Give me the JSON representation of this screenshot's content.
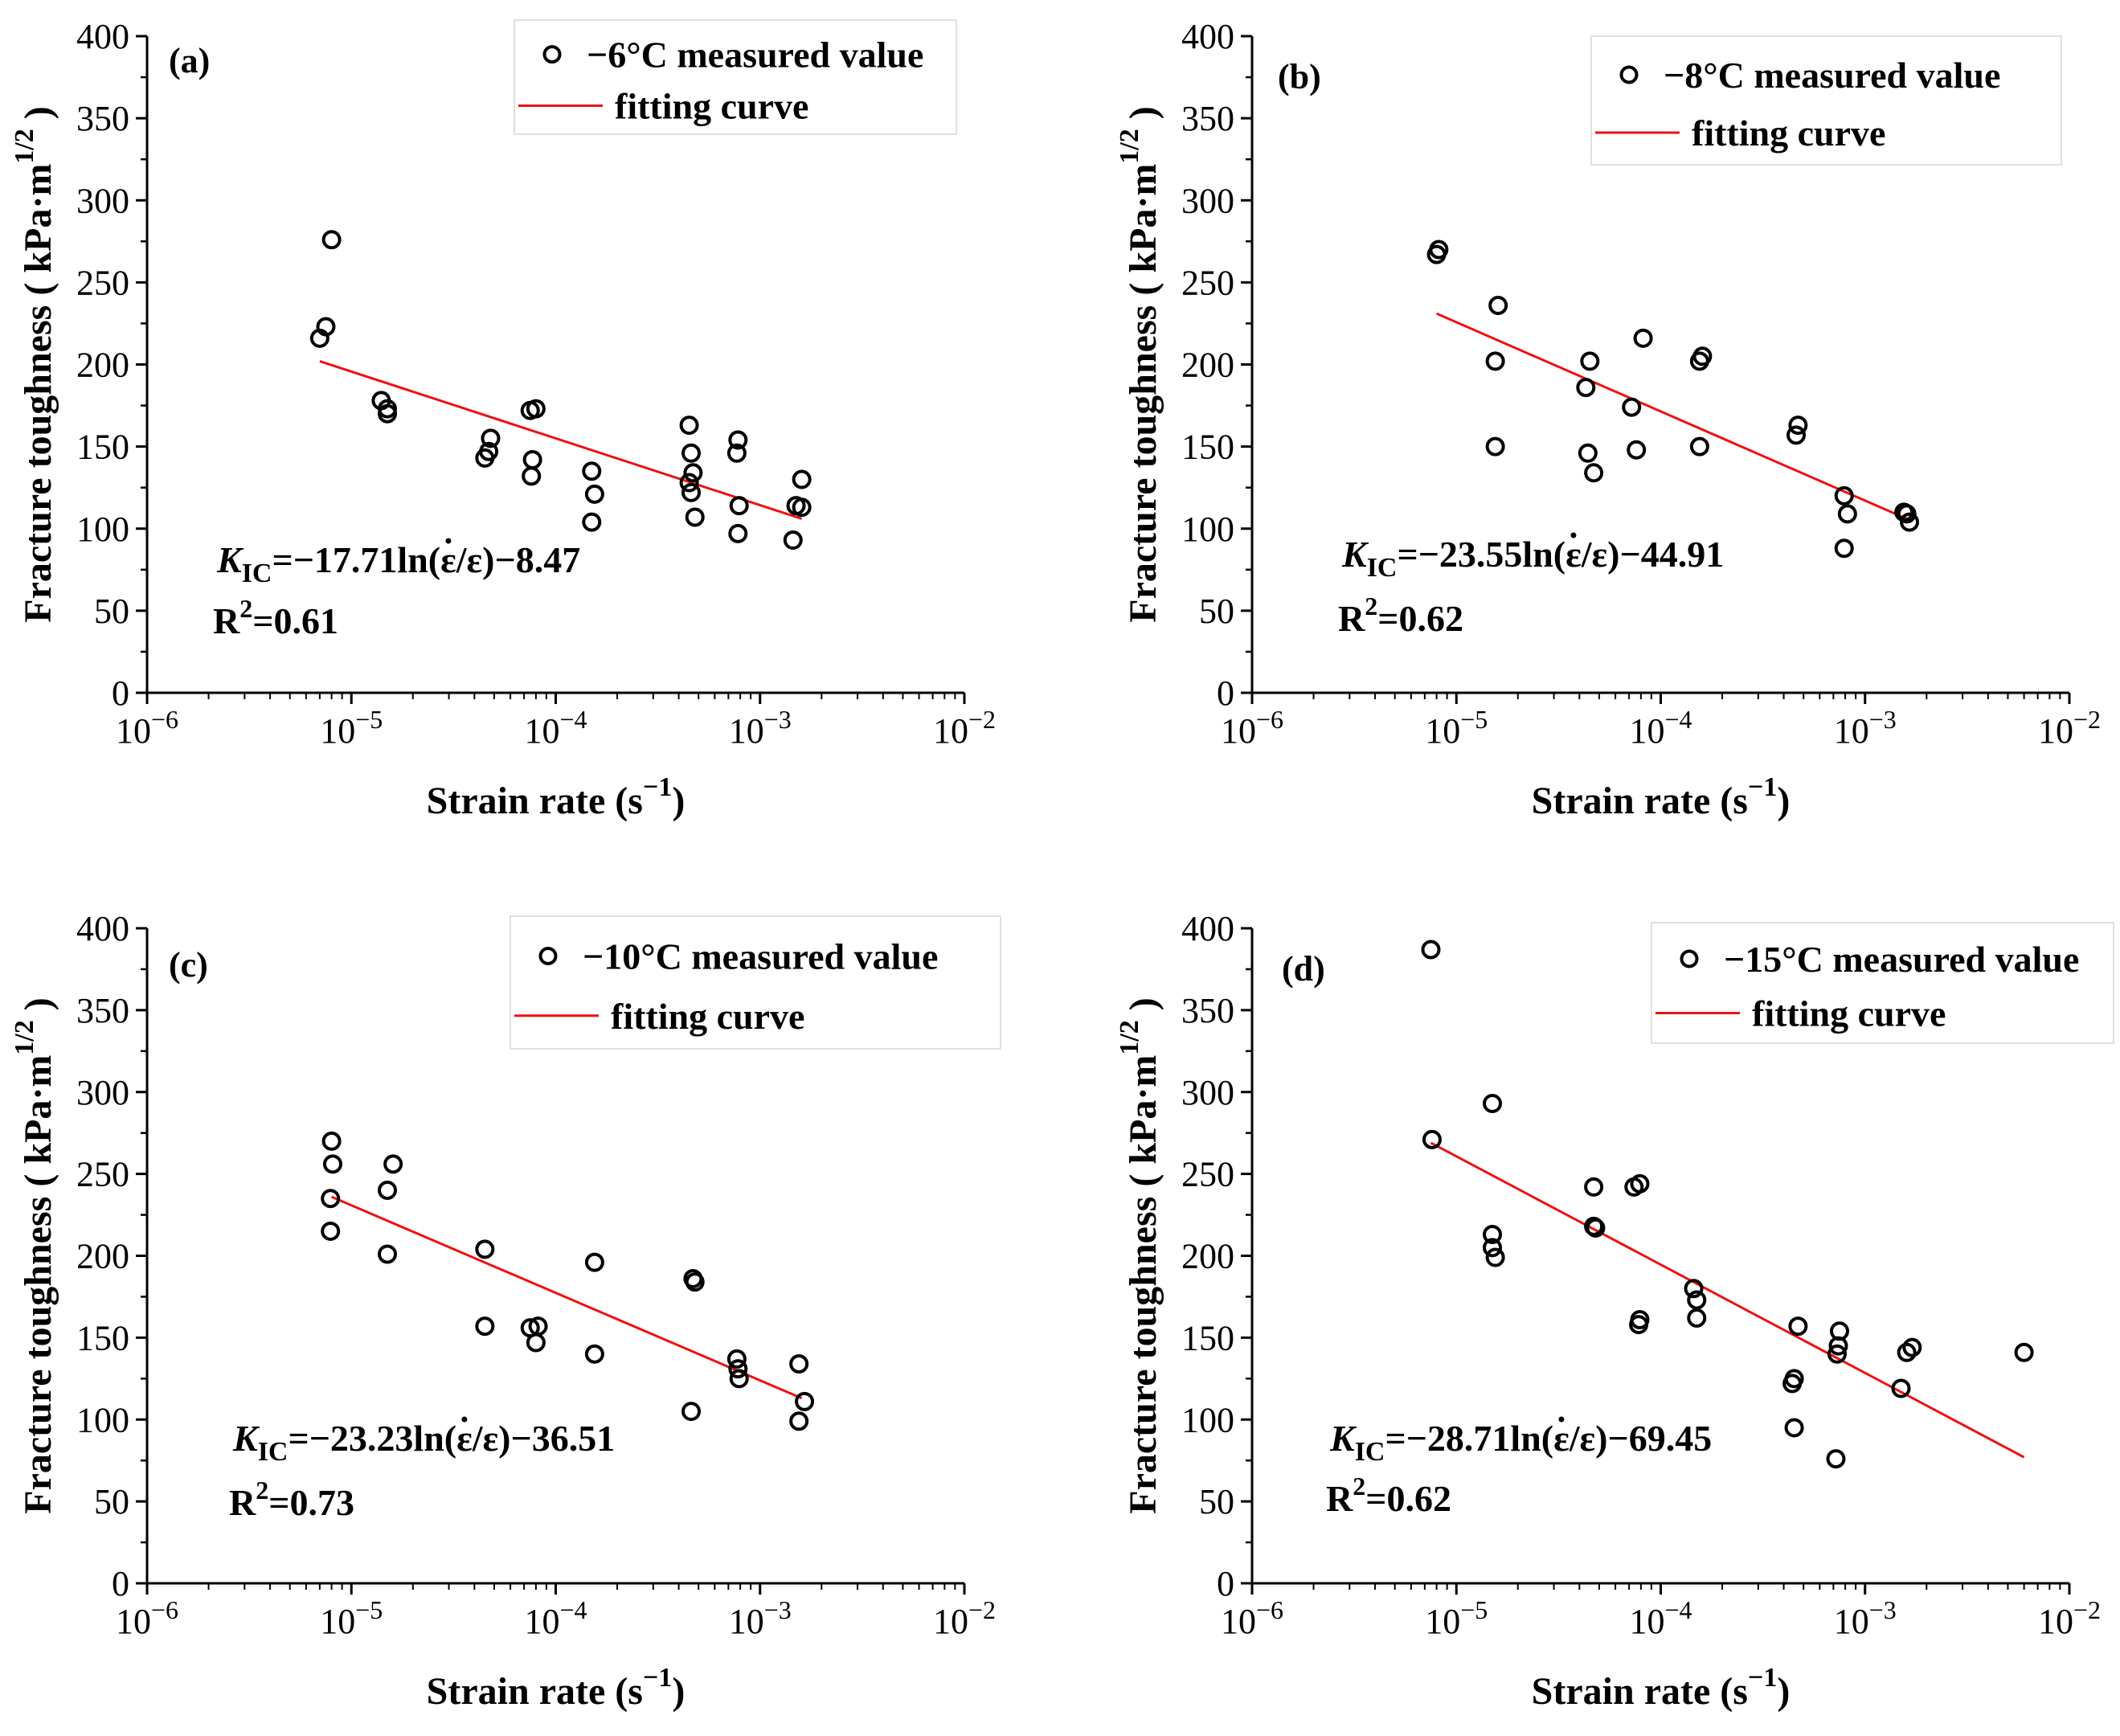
{
  "colors": {
    "fit_line": "#ee1111",
    "marker": "#000000"
  },
  "chart_data": [
    {
      "type": "scatter",
      "panel_label": "(a)",
      "xlabel": "Strain rate (s−1)",
      "ylabel": "Fracture toughness ( kPa·m1/2 )",
      "xscale": "log",
      "xlim": [
        1e-06,
        0.01
      ],
      "ylim": [
        0,
        400
      ],
      "xticks": [
        "10−6",
        "10−5",
        "10−4",
        "10−3",
        "10−2"
      ],
      "yticks": [
        0,
        50,
        100,
        150,
        200,
        250,
        300,
        350,
        400
      ],
      "legend_position": "top-right",
      "series": [
        {
          "name": "−6°C measured value",
          "kind": "markers",
          "points": [
            [
              7e-06,
              216
            ],
            [
              7.5e-06,
              223
            ],
            [
              8e-06,
              276
            ],
            [
              1.4e-05,
              178
            ],
            [
              1.5e-05,
              173
            ],
            [
              1.5e-05,
              170
            ],
            [
              4.5e-05,
              143
            ],
            [
              4.7e-05,
              147
            ],
            [
              4.8e-05,
              155
            ],
            [
              7.5e-05,
              172
            ],
            [
              8e-05,
              173
            ],
            [
              7.7e-05,
              142
            ],
            [
              7.6e-05,
              132
            ],
            [
              0.00015,
              135
            ],
            [
              0.000155,
              121
            ],
            [
              0.00015,
              104
            ],
            [
              0.00045,
              163
            ],
            [
              0.00046,
              146
            ],
            [
              0.00047,
              134
            ],
            [
              0.00045,
              128
            ],
            [
              0.00046,
              122
            ],
            [
              0.00048,
              107
            ],
            [
              0.00078,
              154
            ],
            [
              0.00077,
              146
            ],
            [
              0.00079,
              114
            ],
            [
              0.00078,
              97
            ],
            [
              0.00145,
              93
            ],
            [
              0.0015,
              114
            ],
            [
              0.0016,
              113
            ],
            [
              0.0016,
              130
            ]
          ]
        },
        {
          "name": "fitting curve",
          "kind": "line",
          "points": [
            [
              7e-06,
              202
            ],
            [
              0.0016,
              106
            ]
          ]
        }
      ],
      "annotation": {
        "coef": "=−17.71ln(",
        "eps": "ε/ε)−8.47",
        "r2": "=0.61"
      }
    },
    {
      "type": "scatter",
      "panel_label": "(b)",
      "xlabel": "Strain rate (s−1)",
      "ylabel": "Fracture toughness ( kPa·m1/2 )",
      "xscale": "log",
      "xlim": [
        1e-06,
        0.01
      ],
      "ylim": [
        0,
        400
      ],
      "xticks": [
        "10−6",
        "10−5",
        "10−4",
        "10−3",
        "10−2"
      ],
      "yticks": [
        0,
        50,
        100,
        150,
        200,
        250,
        300,
        350,
        400
      ],
      "legend_position": "top-right",
      "series": [
        {
          "name": "−8°C measured value",
          "kind": "markers",
          "points": [
            [
              8e-06,
              267
            ],
            [
              8.2e-06,
              270
            ],
            [
              1.6e-05,
              236
            ],
            [
              1.55e-05,
              202
            ],
            [
              1.55e-05,
              150
            ],
            [
              4.3e-05,
              186
            ],
            [
              4.5e-05,
              202
            ],
            [
              4.4e-05,
              146
            ],
            [
              4.7e-05,
              134
            ],
            [
              7.2e-05,
              174
            ],
            [
              7.6e-05,
              148
            ],
            [
              8.2e-05,
              216
            ],
            [
              0.000155,
              202
            ],
            [
              0.00016,
              205
            ],
            [
              0.000155,
              150
            ],
            [
              0.00047,
              163
            ],
            [
              0.00046,
              157
            ],
            [
              0.00079,
              120
            ],
            [
              0.00082,
              109
            ],
            [
              0.00079,
              88
            ],
            [
              0.00155,
              110
            ],
            [
              0.0016,
              109
            ],
            [
              0.00165,
              104
            ]
          ]
        },
        {
          "name": "fitting curve",
          "kind": "line",
          "points": [
            [
              8e-06,
              231
            ],
            [
              0.0016,
              106
            ]
          ]
        }
      ],
      "annotation": {
        "coef": "=−23.55ln(",
        "eps": "ε/ε)−44.91",
        "r2": "=0.62"
      }
    },
    {
      "type": "scatter",
      "panel_label": "(c)",
      "xlabel": "Strain rate (s−1)",
      "ylabel": "Fracture toughness ( kPa·m1/2 )",
      "xscale": "log",
      "xlim": [
        1e-06,
        0.01
      ],
      "ylim": [
        0,
        400
      ],
      "xticks": [
        "10−6",
        "10−5",
        "10−4",
        "10−3",
        "10−2"
      ],
      "yticks": [
        0,
        50,
        100,
        150,
        200,
        250,
        300,
        350,
        400
      ],
      "legend_position": "top-right",
      "series": [
        {
          "name": "−10°C measured value",
          "kind": "markers",
          "points": [
            [
              8e-06,
              270
            ],
            [
              8.1e-06,
              256
            ],
            [
              7.9e-06,
              235
            ],
            [
              7.9e-06,
              215
            ],
            [
              1.5e-05,
              240
            ],
            [
              1.6e-05,
              256
            ],
            [
              1.5e-05,
              201
            ],
            [
              4.5e-05,
              204
            ],
            [
              4.5e-05,
              157
            ],
            [
              7.5e-05,
              156
            ],
            [
              8.2e-05,
              157
            ],
            [
              8e-05,
              147
            ],
            [
              0.000155,
              196
            ],
            [
              0.000155,
              140
            ],
            [
              0.00047,
              186
            ],
            [
              0.00048,
              184
            ],
            [
              0.00046,
              105
            ],
            [
              0.00077,
              137
            ],
            [
              0.00078,
              131
            ],
            [
              0.00079,
              125
            ],
            [
              0.00155,
              134
            ],
            [
              0.00165,
              111
            ],
            [
              0.00155,
              99
            ]
          ]
        },
        {
          "name": "fitting curve",
          "kind": "line",
          "points": [
            [
              8e-06,
              236
            ],
            [
              0.0016,
              113
            ]
          ]
        }
      ],
      "annotation": {
        "coef": "=−23.23ln(",
        "eps": "ε/ε)−36.51",
        "r2": "=0.73"
      }
    },
    {
      "type": "scatter",
      "panel_label": "(d)",
      "xlabel": "Strain rate (s−1)",
      "ylabel": "Fracture toughness ( kPa·m1/2 )",
      "xscale": "log",
      "xlim": [
        1e-06,
        0.01
      ],
      "ylim": [
        0,
        400
      ],
      "xticks": [
        "10−6",
        "10−5",
        "10−4",
        "10−3",
        "10−2"
      ],
      "yticks": [
        0,
        50,
        100,
        150,
        200,
        250,
        300,
        350,
        400
      ],
      "legend_position": "top-right",
      "series": [
        {
          "name": "−15°C measured value",
          "kind": "markers",
          "points": [
            [
              7.5e-06,
              387
            ],
            [
              7.6e-06,
              271
            ],
            [
              1.5e-05,
              293
            ],
            [
              1.5e-05,
              213
            ],
            [
              1.5e-05,
              205
            ],
            [
              1.55e-05,
              199
            ],
            [
              4.7e-05,
              242
            ],
            [
              4.8e-05,
              217
            ],
            [
              4.7e-05,
              218
            ],
            [
              7.4e-05,
              242
            ],
            [
              7.9e-05,
              244
            ],
            [
              7.9e-05,
              161
            ],
            [
              7.8e-05,
              158
            ],
            [
              0.000145,
              180
            ],
            [
              0.00015,
              173
            ],
            [
              0.00015,
              162
            ],
            [
              0.00045,
              125
            ],
            [
              0.00044,
              122
            ],
            [
              0.00045,
              95
            ],
            [
              0.00047,
              157
            ],
            [
              0.00075,
              154
            ],
            [
              0.00074,
              145
            ],
            [
              0.00073,
              140
            ],
            [
              0.00072,
              76
            ],
            [
              0.0015,
              119
            ],
            [
              0.0016,
              141
            ],
            [
              0.0017,
              144
            ],
            [
              0.006,
              141
            ]
          ]
        },
        {
          "name": "fitting curve",
          "kind": "line",
          "points": [
            [
              7.5e-06,
              269
            ],
            [
              0.006,
              77
            ]
          ]
        }
      ],
      "annotation": {
        "coef": "=−28.71ln(",
        "eps": "ε/ε)−69.45",
        "r2": "=0.62"
      }
    }
  ]
}
